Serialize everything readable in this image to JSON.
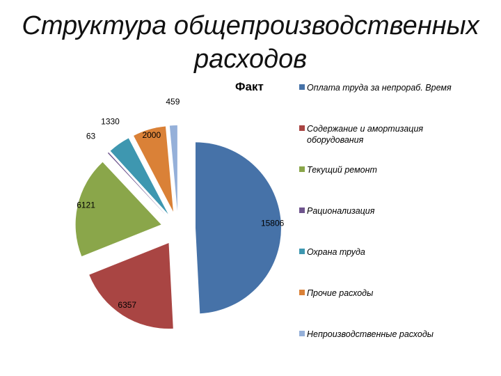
{
  "title_line1": "Структура общепроизводственных",
  "title_line2": "расходов",
  "chart_data": {
    "type": "pie",
    "title": "Факт",
    "exploded": true,
    "legend_position": "right",
    "categories": [
      "Оплата труда за непрораб. Время",
      "Содержание и амортизация оборудования",
      "Текущий ремонт",
      "Рационализация",
      "Охрана труда",
      "Прочие расходы",
      "Непроизводственные расходы"
    ],
    "values": [
      15806,
      6357,
      6121,
      63,
      1330,
      2000,
      459
    ],
    "data_labels": [
      "15806",
      "6357",
      "6121",
      "63",
      "1330",
      "2000",
      "459"
    ],
    "colors": [
      "#4672a8",
      "#a94543",
      "#8aa64a",
      "#6e548d",
      "#3e97b0",
      "#da8137",
      "#95b0d9"
    ]
  }
}
